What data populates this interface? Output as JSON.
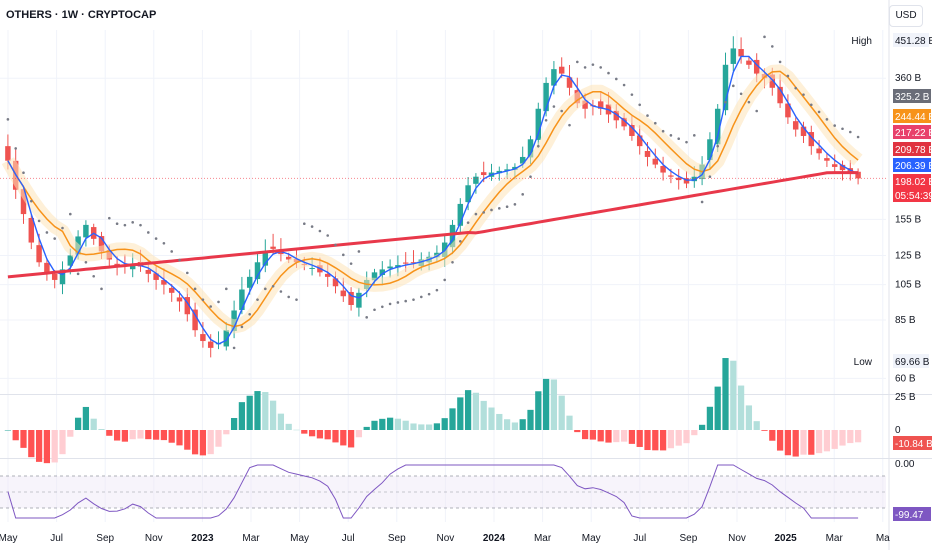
{
  "header": {
    "title": "OTHERS · 1W · CRYPTOCAP",
    "currency": "USD"
  },
  "chart_data": [
    {
      "type": "candlestick",
      "panel": "price",
      "x_ticks": [
        "May",
        "Jul",
        "Sep",
        "Nov",
        "2023",
        "Mar",
        "May",
        "Jul",
        "Sep",
        "Nov",
        "2024",
        "Mar",
        "May",
        "Jul",
        "Sep",
        "Nov",
        "2025",
        "Mar",
        "Ma"
      ],
      "y_ticks": [
        "360 B",
        "155 B",
        "125 B",
        "105 B",
        "85 B",
        "60 B"
      ],
      "y_scale": "log",
      "ylim_billions": [
        55,
        480
      ],
      "price_labels": [
        {
          "text": "High",
          "value": "451.28 B"
        },
        {
          "text": "",
          "value": "325.2 B",
          "color": "#6a6d78"
        },
        {
          "text": "",
          "value": "244.44 B",
          "color": "#f7931a"
        },
        {
          "text": "",
          "value": "217.22 B",
          "color": "#e8406b"
        },
        {
          "text": "",
          "value": "209.78 B",
          "color": "#e03340"
        },
        {
          "text": "",
          "value": "206.39 B",
          "color": "#2962ff"
        },
        {
          "text": "",
          "value": "198.02 B",
          "color": "#f23645"
        },
        {
          "text": "",
          "value": "05:54:39",
          "color": "#f23645"
        },
        {
          "text": "Low",
          "value": "69.66 B"
        }
      ],
      "close_weekly_billions": [
        220,
        185,
        160,
        135,
        120,
        112,
        108,
        115,
        125,
        140,
        150,
        138,
        128,
        122,
        118,
        117,
        119,
        117,
        112,
        108,
        105,
        100,
        95,
        88,
        80,
        75,
        72,
        74,
        80,
        90,
        102,
        110,
        120,
        128,
        130,
        126,
        122,
        120,
        118,
        116,
        113,
        110,
        104,
        98,
        93,
        100,
        108,
        113,
        115,
        117,
        118,
        119,
        120,
        122,
        124,
        127,
        135,
        150,
        170,
        190,
        200,
        202,
        205,
        207,
        209,
        212,
        225,
        250,
        300,
        350,
        380,
        370,
        340,
        310,
        300,
        305,
        300,
        290,
        280,
        270,
        255,
        240,
        225,
        215,
        205,
        200,
        196,
        192,
        200,
        215,
        250,
        300,
        390,
        430,
        410,
        390,
        370,
        360,
        340,
        310,
        285,
        265,
        255,
        240,
        230,
        220,
        212,
        208,
        204,
        198
      ],
      "indicators": {
        "long_ma_color": "#e8384a",
        "mid_ma_color": "#f7931a",
        "fast_ma_color": "#2962ff",
        "sar_color": "#787b86"
      }
    },
    {
      "type": "bar",
      "panel": "histogram",
      "y_ticks": [
        "25 B",
        "0"
      ],
      "last_value": "-10.84 B",
      "colors": {
        "up_strong": "#26a69a",
        "up_weak": "#b2dfdb",
        "down_strong": "#ff5252",
        "down_weak": "#ffcdd2"
      }
    },
    {
      "type": "line",
      "panel": "oscillator",
      "y_ticks": [
        "0.00"
      ],
      "last_value": "-99.47",
      "color": "#7e57c2"
    }
  ]
}
